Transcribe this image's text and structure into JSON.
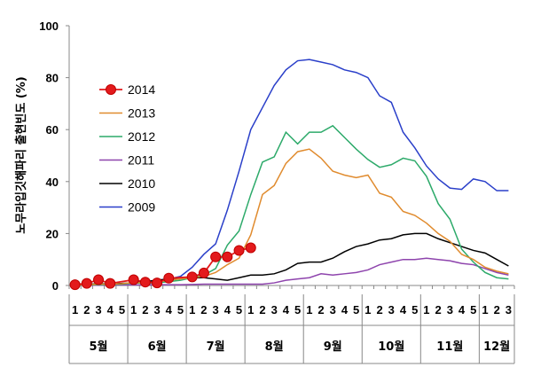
{
  "chart_data": {
    "type": "line",
    "ylabel": "노무라입깃해파리 출현빈도 (%)",
    "ylim": [
      0,
      100
    ],
    "yticks": [
      "0",
      "20",
      "40",
      "60",
      "80",
      "100"
    ],
    "grid": false,
    "legend_position": "left",
    "x_labels": [
      "1",
      "2",
      "3",
      "4",
      "5",
      "1",
      "2",
      "3",
      "4",
      "5",
      "1",
      "2",
      "3",
      "4",
      "5",
      "1",
      "2",
      "3",
      "4",
      "5",
      "1",
      "2",
      "3",
      "4",
      "5",
      "1",
      "2",
      "3",
      "4",
      "5",
      "1",
      "2",
      "3",
      "4",
      "5",
      "1",
      "2",
      "3"
    ],
    "months": [
      "5월",
      "6월",
      "7월",
      "8월",
      "9월",
      "10월",
      "11월",
      "12월"
    ],
    "series": [
      {
        "name": "2014",
        "color": "#e31a1c",
        "marker": "circle",
        "values": [
          0.3,
          0.8,
          2.2,
          0.8,
          null,
          2.2,
          1.3,
          1.0,
          2.8,
          null,
          3.3,
          4.8,
          11,
          11,
          13.5,
          14.5
        ]
      },
      {
        "name": "2013",
        "color": "#e08b2e",
        "values": [
          0.2,
          0.3,
          0.5,
          0.5,
          0.7,
          1.2,
          1.0,
          1.3,
          2.0,
          2.5,
          3.0,
          3.5,
          5.0,
          8.0,
          10.5,
          19.5,
          35,
          38.5,
          47,
          51.5,
          52.5,
          49,
          44,
          42.5,
          41.5,
          42.5,
          35.5,
          34,
          28.5,
          27,
          24,
          20,
          17,
          12,
          10,
          7,
          5.5,
          4.5
        ]
      },
      {
        "name": "2012",
        "color": "#2daa6a",
        "values": [
          0.1,
          0.2,
          0.3,
          0.4,
          0.5,
          1.0,
          0.8,
          1.0,
          1.5,
          2.0,
          3.0,
          4.0,
          6.5,
          15.5,
          21,
          35,
          47.5,
          49.5,
          59,
          54.5,
          59,
          59,
          61.5,
          57,
          52.5,
          48.5,
          45.5,
          46.5,
          49,
          48,
          42,
          31.5,
          25.5,
          14,
          9,
          5,
          3,
          2.5
        ]
      },
      {
        "name": "2011",
        "color": "#8e44ad",
        "values": [
          0.1,
          0.1,
          0.1,
          0.2,
          0.2,
          0.2,
          0.2,
          0.3,
          0.3,
          0.3,
          0.4,
          0.5,
          0.5,
          0.5,
          0.5,
          0.5,
          0.5,
          1.0,
          2.0,
          2.5,
          3.0,
          4.5,
          4.0,
          4.5,
          5.0,
          6.0,
          8.0,
          9.0,
          10.0,
          10.0,
          10.5,
          10.0,
          9.5,
          8.5,
          8.0,
          6.5,
          5.0,
          4.0
        ]
      },
      {
        "name": "2010",
        "color": "#000000",
        "values": [
          0.5,
          0.5,
          0.6,
          0.7,
          0.8,
          1.0,
          1.5,
          2.0,
          2.5,
          3.0,
          3.0,
          3.0,
          2.5,
          2.0,
          3.0,
          4.0,
          4.0,
          4.5,
          6.0,
          8.5,
          9.0,
          9.0,
          10.5,
          13.0,
          15.0,
          16.0,
          17.5,
          18.0,
          19.5,
          20.0,
          20.0,
          18.0,
          16.5,
          15.0,
          13.5,
          12.5,
          10.0,
          7.5
        ]
      },
      {
        "name": "2009",
        "color": "#2a3fc9",
        "values": [
          0.2,
          0.3,
          0.4,
          0.5,
          0.6,
          1.0,
          1.5,
          2.0,
          2.5,
          3.5,
          7.0,
          12.0,
          16.0,
          29,
          44,
          60,
          68.5,
          77,
          83,
          86.5,
          87,
          86,
          85,
          83,
          82,
          80,
          73,
          70.5,
          59,
          53,
          46,
          41,
          37.5,
          37,
          41,
          40,
          36.5,
          36.5
        ]
      }
    ]
  }
}
